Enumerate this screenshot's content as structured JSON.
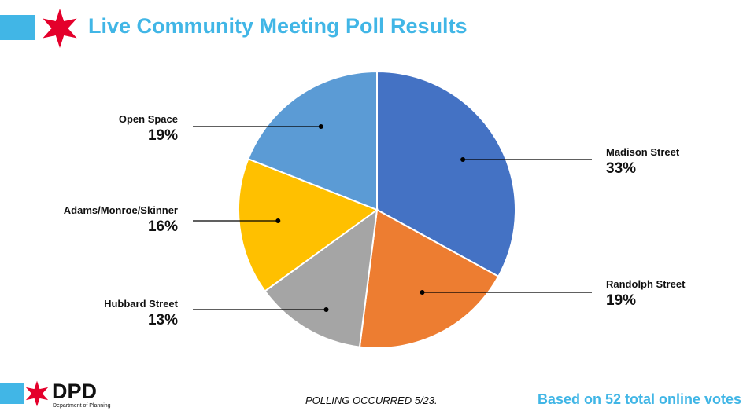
{
  "header": {
    "title": "Live Community Meeting Poll Results"
  },
  "footer": {
    "logo_text": "DPD",
    "department": "Department of Planning",
    "polling_note": "POLLING OCCURRED 5/23.",
    "votes_note": "Based on 52 total online votes"
  },
  "colors": {
    "accent": "#41b6e6",
    "star": "#e4002b"
  },
  "chart_data": {
    "type": "pie",
    "start_angle_deg": 0,
    "direction": "clockwise",
    "slices": [
      {
        "label": "Madison Street",
        "pct_label": "33%",
        "value": 33,
        "color": "#4472c4"
      },
      {
        "label": "Randolph Street",
        "pct_label": "19%",
        "value": 19,
        "color": "#ed7d31"
      },
      {
        "label": "Hubbard Street",
        "pct_label": "13%",
        "value": 13,
        "color": "#a5a5a5"
      },
      {
        "label": "Adams/Monroe/Skinner",
        "pct_label": "16%",
        "value": 16,
        "color": "#ffc000"
      },
      {
        "label": "Open Space",
        "pct_label": "19%",
        "value": 19,
        "color": "#5b9bd5"
      }
    ]
  }
}
